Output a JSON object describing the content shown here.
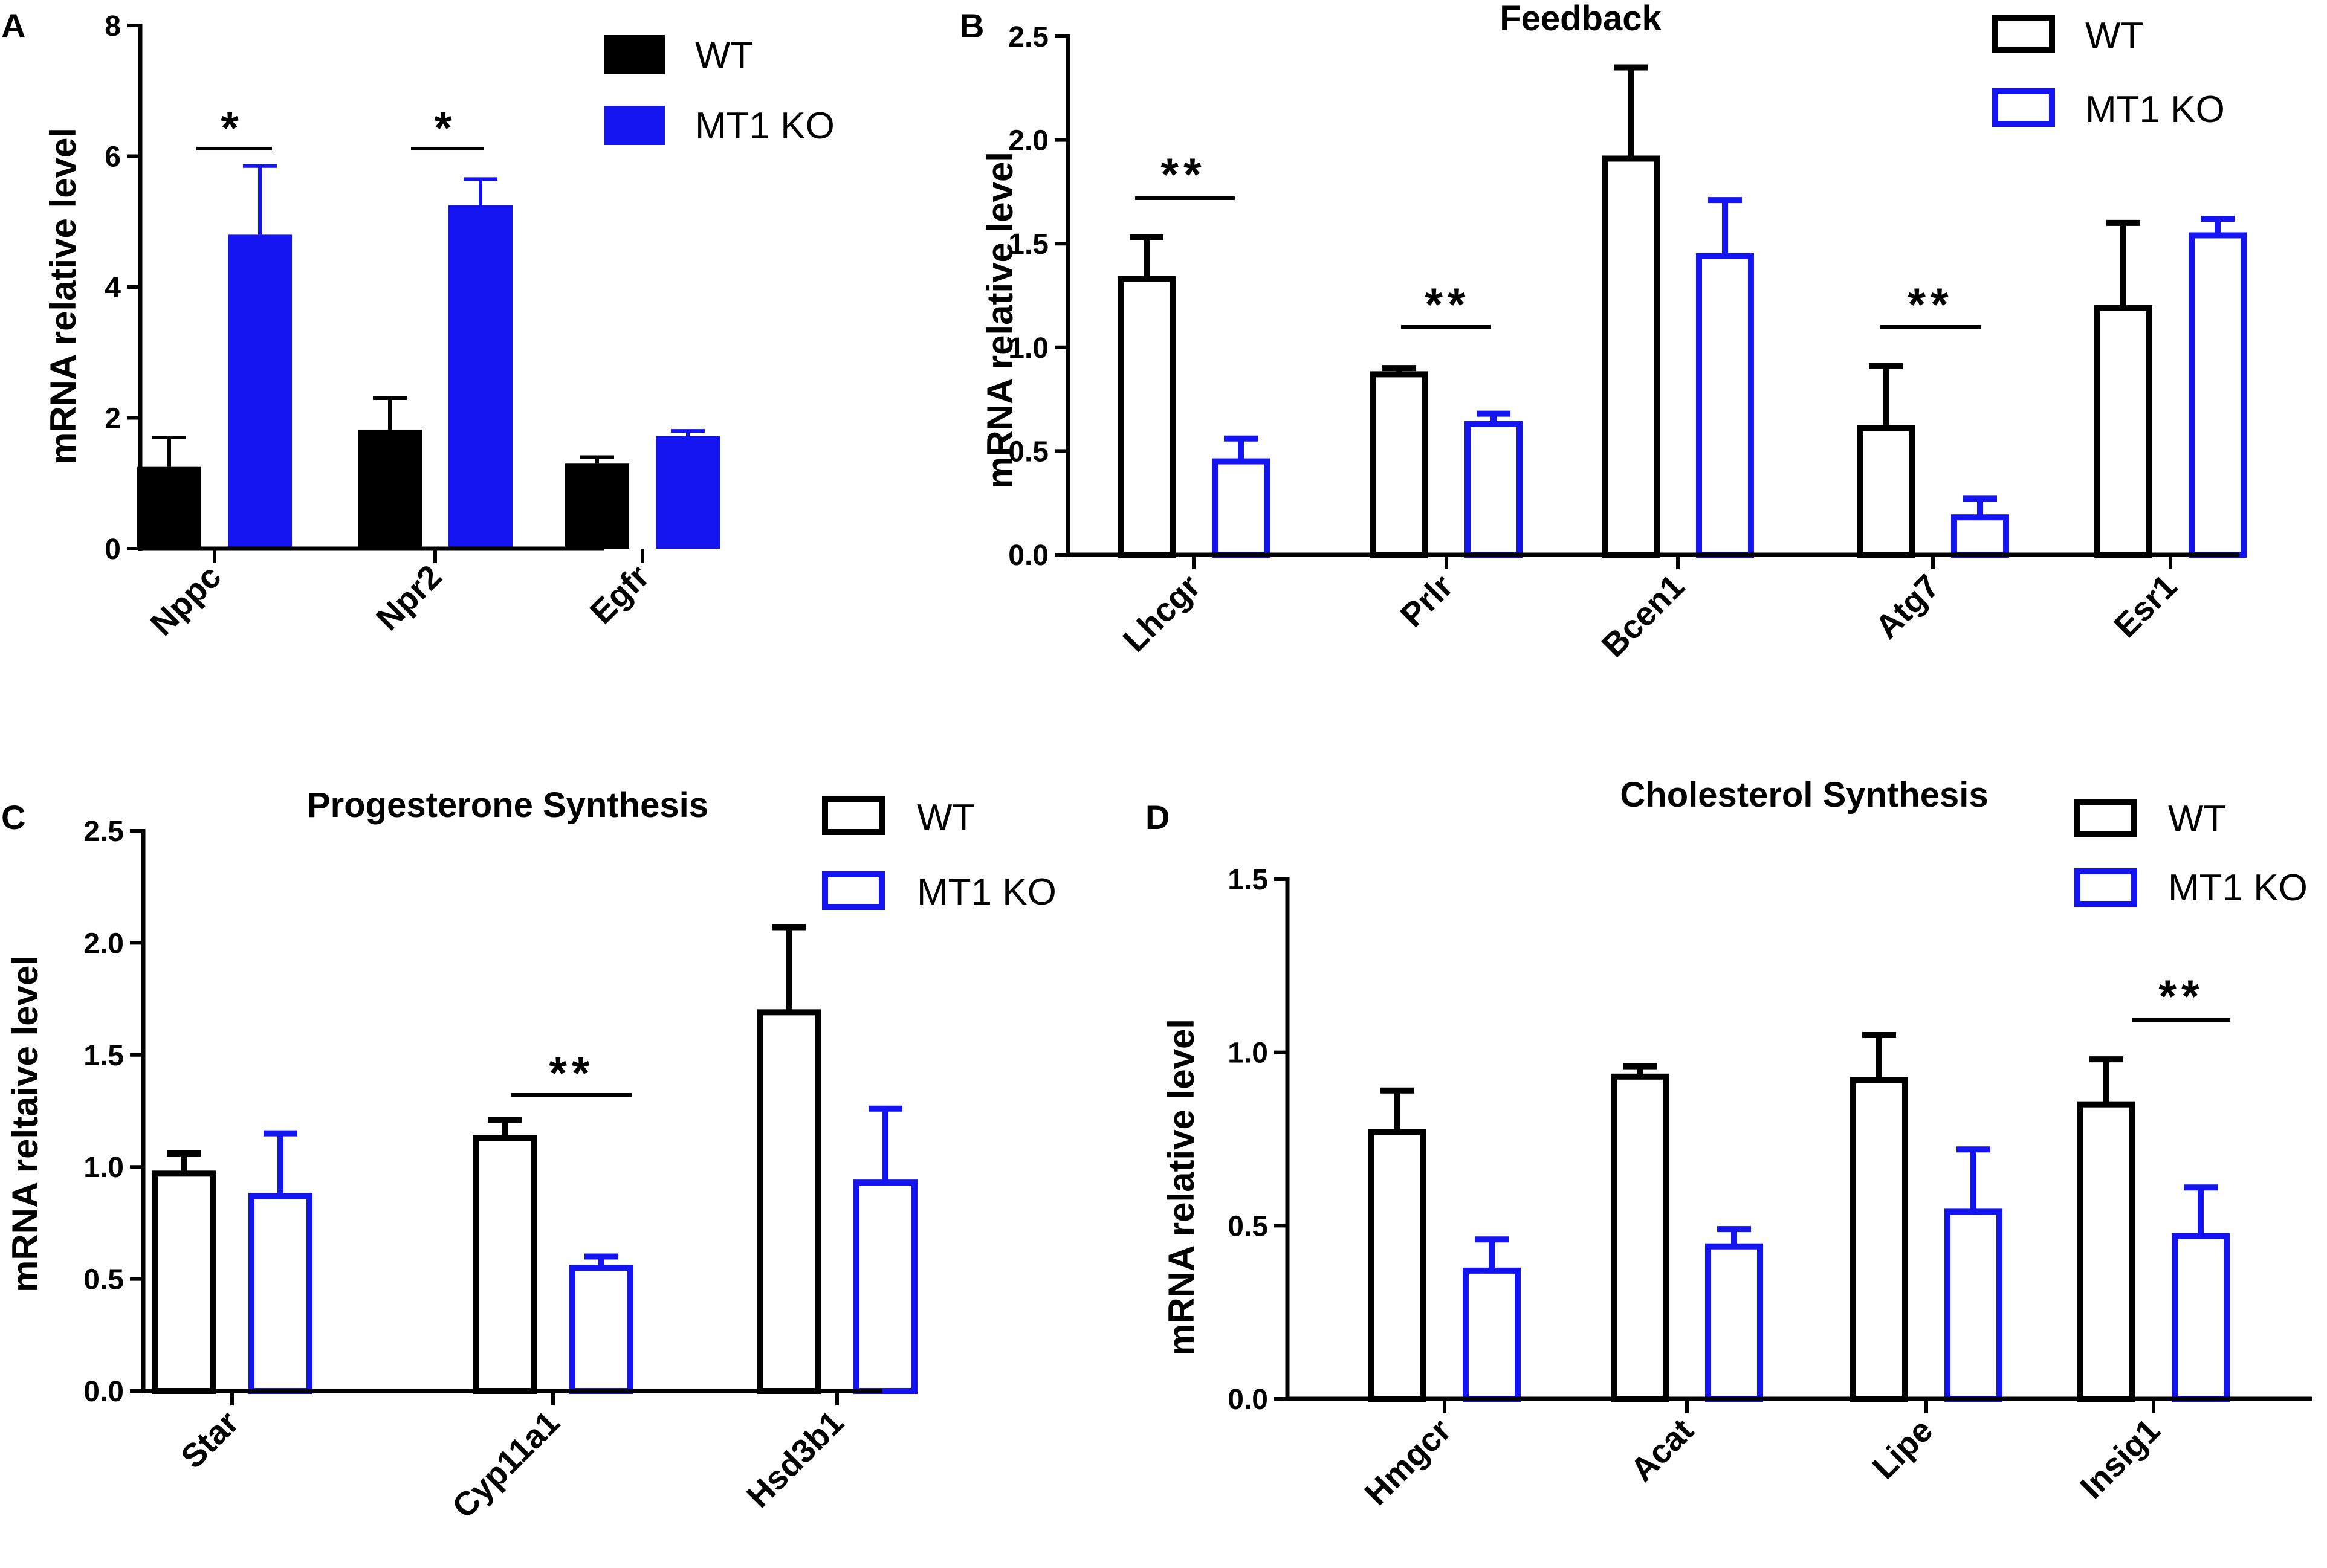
{
  "colors": {
    "wt": "#000000",
    "ko": "#1414f0",
    "axis": "#000000"
  },
  "chart_data": [
    {
      "panel": "A",
      "type": "bar",
      "style": "filled",
      "title": "",
      "ylabel": "mRNA relative level",
      "ylim": [
        0,
        8
      ],
      "yticks": [
        "0",
        "2",
        "4",
        "6",
        "8"
      ],
      "categories": [
        "Nppc",
        "Npr2",
        "Egfr"
      ],
      "series": [
        {
          "name": "WT",
          "values": [
            1.25,
            1.82,
            1.3
          ],
          "errors": [
            0.45,
            0.48,
            0.1
          ]
        },
        {
          "name": "MT1 KO",
          "values": [
            4.8,
            5.25,
            1.72
          ],
          "errors": [
            1.05,
            0.4,
            0.08
          ]
        }
      ],
      "significance": [
        {
          "category": 0,
          "label": "*"
        },
        {
          "category": 1,
          "label": "*"
        }
      ],
      "legend": "top-right"
    },
    {
      "panel": "B",
      "type": "bar",
      "style": "outline",
      "title": "Feedback",
      "ylabel": "mRNA relative level",
      "ylim": [
        0,
        2.5
      ],
      "yticks": [
        "0.0",
        "0.5",
        "1.0",
        "1.5",
        "2.0",
        "2.5"
      ],
      "categories": [
        "Lhcgr",
        "Prlr",
        "Bcen1",
        "Atg7",
        "Esr1"
      ],
      "series": [
        {
          "name": "WT",
          "values": [
            1.33,
            0.87,
            1.91,
            0.61,
            1.19
          ],
          "errors": [
            0.2,
            0.03,
            0.44,
            0.3,
            0.41
          ]
        },
        {
          "name": "MT1 KO",
          "values": [
            0.45,
            0.63,
            1.44,
            0.18,
            1.54
          ],
          "errors": [
            0.11,
            0.05,
            0.27,
            0.09,
            0.08
          ]
        }
      ],
      "significance": [
        {
          "category": 0,
          "label": "**"
        },
        {
          "category": 1,
          "label": "**"
        },
        {
          "category": 3,
          "label": "**"
        }
      ],
      "legend": "top-right"
    },
    {
      "panel": "C",
      "type": "bar",
      "style": "outline",
      "title": "Progesterone Synthesis",
      "ylabel": "mRNA reltaive level",
      "ylim": [
        0,
        2.5
      ],
      "yticks": [
        "0.0",
        "0.5",
        "1.0",
        "1.5",
        "2.0",
        "2.5"
      ],
      "categories": [
        "Star",
        "Cyp11a1",
        "Hsd3b1"
      ],
      "series": [
        {
          "name": "WT",
          "values": [
            0.97,
            1.13,
            1.69
          ],
          "errors": [
            0.09,
            0.08,
            0.38
          ]
        },
        {
          "name": "MT1 KO",
          "values": [
            0.87,
            0.55,
            0.93
          ],
          "errors": [
            0.28,
            0.05,
            0.33
          ]
        }
      ],
      "significance": [
        {
          "category": 1,
          "label": "**"
        }
      ],
      "legend": "top-right"
    },
    {
      "panel": "D",
      "type": "bar",
      "style": "outline",
      "title": "Cholesterol Synthesis",
      "ylabel": "mRNA relative level",
      "ylim": [
        0,
        1.5
      ],
      "yticks": [
        "0.0",
        "0.5",
        "1.0",
        "1.5"
      ],
      "categories": [
        "Hmgcr",
        "Acat",
        "Lipe",
        "Insig1"
      ],
      "series": [
        {
          "name": "WT",
          "values": [
            0.77,
            0.93,
            0.92,
            0.85
          ],
          "errors": [
            0.12,
            0.03,
            0.13,
            0.13
          ]
        },
        {
          "name": "MT1 KO",
          "values": [
            0.37,
            0.44,
            0.54,
            0.47
          ],
          "errors": [
            0.09,
            0.05,
            0.18,
            0.14
          ]
        }
      ],
      "significance": [
        {
          "category": 3,
          "label": "**"
        }
      ],
      "legend": "top-right"
    }
  ]
}
